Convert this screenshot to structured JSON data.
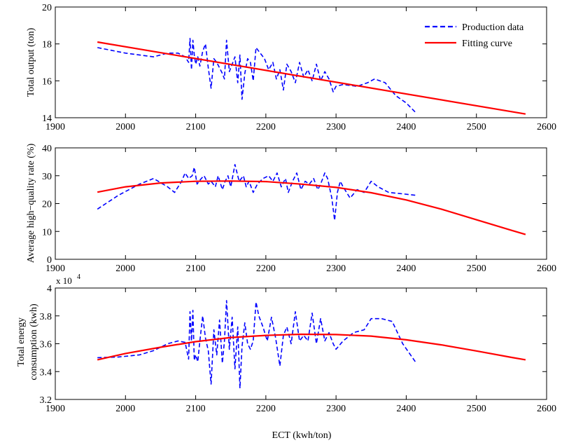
{
  "x_axis_label": "ECT (kwh/ton)",
  "chart_data": [
    {
      "type": "line",
      "ylabel": "Total output (ton)",
      "xlim": [
        1900,
        2600
      ],
      "ylim": [
        14,
        20
      ],
      "xticks": [
        "1900",
        "2000",
        "2100",
        "2200",
        "2300",
        "2400",
        "2500",
        "2600"
      ],
      "yticks": [
        "14",
        "16",
        "18",
        "20"
      ],
      "legend": {
        "placement": "top-right",
        "entries": [
          "Production data",
          "Fitting curve"
        ]
      },
      "series": [
        {
          "name": "Production data",
          "color": "#0000ff",
          "style": "dashed",
          "x": [
            1960,
            2000,
            2040,
            2060,
            2075,
            2085,
            2090,
            2092,
            2094,
            2096,
            2098,
            2100,
            2103,
            2106,
            2110,
            2114,
            2118,
            2122,
            2126,
            2130,
            2134,
            2138,
            2141,
            2144,
            2148,
            2152,
            2156,
            2160,
            2163,
            2166,
            2170,
            2174,
            2178,
            2182,
            2186,
            2190,
            2198,
            2204,
            2210,
            2215,
            2220,
            2225,
            2230,
            2236,
            2242,
            2248,
            2254,
            2260,
            2266,
            2272,
            2278,
            2284,
            2290,
            2296,
            2300,
            2310,
            2330,
            2345,
            2355,
            2370,
            2385,
            2400,
            2413
          ],
          "values": [
            17.8,
            17.5,
            17.3,
            17.5,
            17.5,
            17.3,
            17.0,
            18.3,
            16.6,
            18.2,
            17.4,
            16.9,
            17.3,
            16.8,
            17.6,
            18.0,
            16.7,
            15.6,
            17.2,
            17.0,
            16.7,
            16.4,
            16.1,
            18.2,
            16.5,
            16.9,
            17.3,
            15.9,
            17.4,
            15.0,
            16.4,
            17.2,
            17.0,
            16.0,
            17.8,
            17.6,
            17.2,
            16.6,
            17.0,
            16.1,
            16.6,
            15.5,
            16.9,
            16.5,
            15.9,
            17.0,
            16.2,
            16.6,
            16.0,
            16.9,
            16.0,
            16.5,
            16.1,
            15.4,
            15.7,
            15.8,
            15.7,
            15.9,
            16.1,
            15.9,
            15.2,
            14.8,
            14.3
          ]
        },
        {
          "name": "Fitting curve",
          "color": "#ff0000",
          "style": "solid",
          "x": [
            1960,
            2570
          ],
          "values": [
            18.1,
            14.2
          ]
        }
      ]
    },
    {
      "type": "line",
      "ylabel": "Average high−quality rate (%)",
      "xlim": [
        1900,
        2600
      ],
      "ylim": [
        0,
        40
      ],
      "xticks": [
        "1900",
        "2000",
        "2100",
        "2200",
        "2300",
        "2400",
        "2500",
        "2600"
      ],
      "yticks": [
        "0",
        "10",
        "20",
        "30",
        "40"
      ],
      "series": [
        {
          "name": "Production data",
          "color": "#0000ff",
          "style": "dashed",
          "x": [
            1960,
            1990,
            2020,
            2040,
            2060,
            2070,
            2080,
            2085,
            2090,
            2095,
            2098,
            2102,
            2108,
            2112,
            2118,
            2122,
            2128,
            2132,
            2138,
            2142,
            2146,
            2150,
            2156,
            2162,
            2168,
            2172,
            2176,
            2182,
            2188,
            2196,
            2204,
            2210,
            2216,
            2222,
            2228,
            2232,
            2238,
            2244,
            2250,
            2256,
            2262,
            2268,
            2274,
            2278,
            2284,
            2288,
            2294,
            2298,
            2302,
            2306,
            2310,
            2320,
            2330,
            2340,
            2350,
            2360,
            2375,
            2395,
            2413
          ],
          "values": [
            18,
            23,
            27,
            29,
            26,
            24,
            28,
            31,
            29,
            30,
            33,
            27,
            29,
            30,
            27,
            28,
            26,
            30,
            25,
            28,
            30,
            26,
            34,
            28,
            30,
            26,
            28,
            24,
            27,
            29,
            30,
            28,
            31,
            26,
            29,
            24,
            28,
            31,
            25,
            28,
            27,
            29,
            25,
            27,
            31,
            29,
            22,
            14,
            24,
            28,
            26,
            22,
            25,
            24,
            28,
            26,
            24,
            23.5,
            23
          ]
        },
        {
          "name": "Fitting curve",
          "color": "#ff0000",
          "style": "solid",
          "x": [
            1960,
            2000,
            2050,
            2100,
            2150,
            2200,
            2250,
            2300,
            2350,
            2400,
            2450,
            2500,
            2550,
            2570
          ],
          "values": [
            24.1,
            26.0,
            27.4,
            28.0,
            28.1,
            27.9,
            27.0,
            25.8,
            23.9,
            21.3,
            18.0,
            14.2,
            10.4,
            8.9
          ]
        }
      ]
    },
    {
      "type": "line",
      "ylabel": "Total energy consumption (kwh)",
      "ylabel_lines": [
        "Total energy",
        "consumption (kwh)"
      ],
      "exponent_label": "x 10",
      "exponent": "4",
      "xlim": [
        1900,
        2600
      ],
      "ylim": [
        3.2,
        4
      ],
      "xticks": [
        "1900",
        "2000",
        "2100",
        "2200",
        "2300",
        "2400",
        "2500",
        "2600"
      ],
      "yticks": [
        "3.2",
        "3.4",
        "3.6",
        "3.8",
        "4"
      ],
      "series": [
        {
          "name": "Production data",
          "color": "#0000ff",
          "style": "dashed",
          "x": [
            1960,
            1990,
            2020,
            2040,
            2060,
            2075,
            2085,
            2090,
            2092,
            2094,
            2096,
            2098,
            2100,
            2103,
            2106,
            2110,
            2114,
            2118,
            2122,
            2126,
            2130,
            2134,
            2138,
            2141,
            2144,
            2148,
            2152,
            2156,
            2160,
            2163,
            2166,
            2170,
            2174,
            2178,
            2182,
            2186,
            2190,
            2196,
            2202,
            2208,
            2214,
            2220,
            2225,
            2230,
            2236,
            2242,
            2248,
            2254,
            2260,
            2266,
            2272,
            2278,
            2284,
            2290,
            2296,
            2300,
            2310,
            2325,
            2340,
            2350,
            2365,
            2380,
            2395,
            2413
          ],
          "values": [
            3.5,
            3.505,
            3.52,
            3.55,
            3.6,
            3.62,
            3.61,
            3.49,
            3.83,
            3.62,
            3.84,
            3.48,
            3.52,
            3.47,
            3.62,
            3.8,
            3.64,
            3.55,
            3.31,
            3.7,
            3.52,
            3.77,
            3.46,
            3.62,
            3.91,
            3.56,
            3.79,
            3.42,
            3.72,
            3.28,
            3.58,
            3.75,
            3.6,
            3.56,
            3.62,
            3.9,
            3.8,
            3.72,
            3.62,
            3.79,
            3.64,
            3.44,
            3.66,
            3.72,
            3.6,
            3.83,
            3.62,
            3.66,
            3.62,
            3.82,
            3.6,
            3.78,
            3.62,
            3.68,
            3.6,
            3.56,
            3.62,
            3.68,
            3.7,
            3.78,
            3.78,
            3.76,
            3.6,
            3.47
          ]
        },
        {
          "name": "Fitting curve",
          "color": "#ff0000",
          "style": "solid",
          "x": [
            1960,
            2000,
            2050,
            2100,
            2150,
            2200,
            2250,
            2300,
            2350,
            2400,
            2450,
            2500,
            2550,
            2570
          ],
          "values": [
            3.485,
            3.53,
            3.575,
            3.615,
            3.645,
            3.66,
            3.668,
            3.666,
            3.655,
            3.628,
            3.592,
            3.548,
            3.502,
            3.485
          ]
        }
      ]
    }
  ]
}
